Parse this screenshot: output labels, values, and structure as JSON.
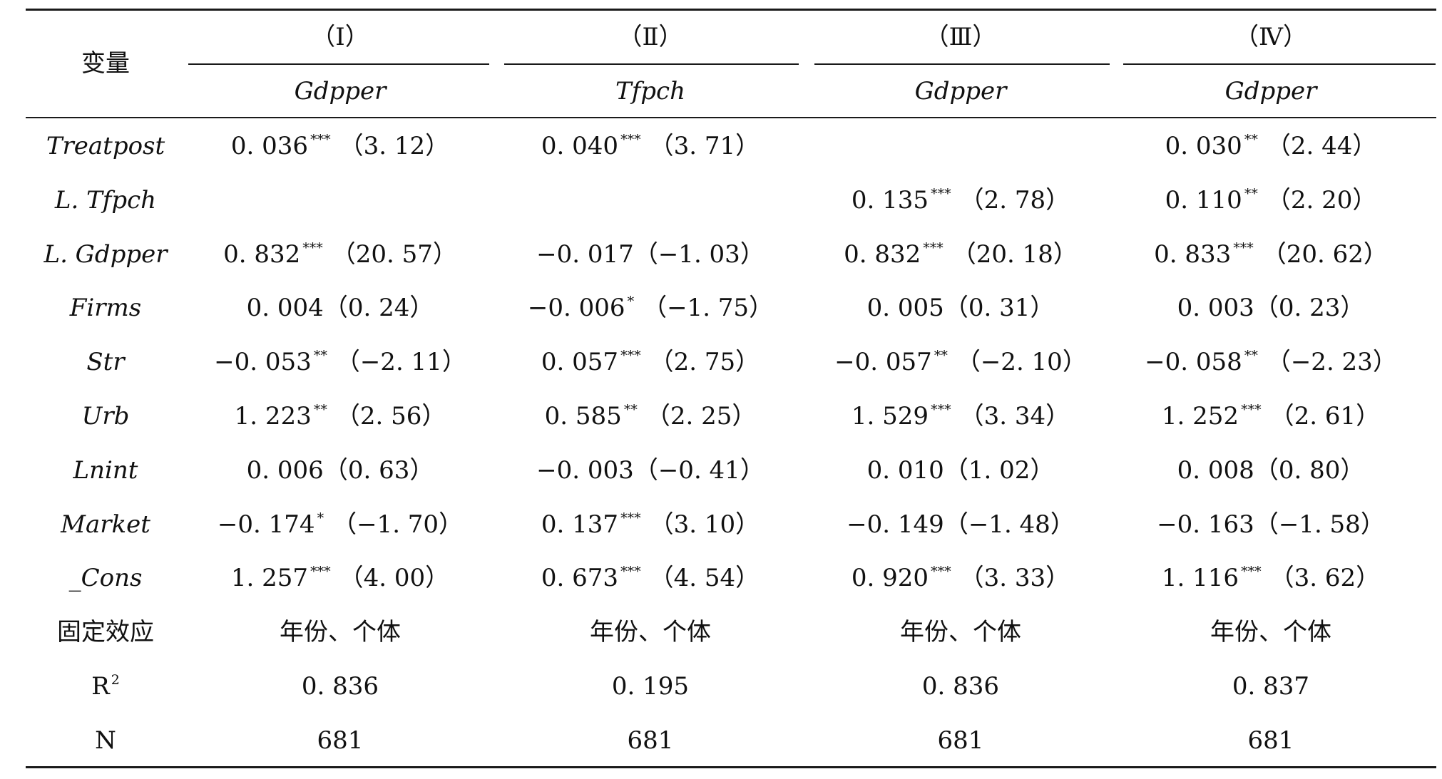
{
  "table": {
    "stub_header": "变量",
    "columns": [
      {
        "number": "（Ⅰ）",
        "dep_var": "Gdpper"
      },
      {
        "number": "（Ⅱ）",
        "dep_var": "Tfpch"
      },
      {
        "number": "（Ⅲ）",
        "dep_var": "Gdpper"
      },
      {
        "number": "（Ⅳ）",
        "dep_var": "Gdpper"
      }
    ],
    "rows": [
      {
        "label": "Treatpost",
        "cells": [
          {
            "coef": "0. 036",
            "stars": "***",
            "t": "（3. 12）"
          },
          {
            "coef": "0. 040",
            "stars": "***",
            "t": "（3. 71）"
          },
          {
            "coef": "",
            "stars": "",
            "t": ""
          },
          {
            "coef": "0. 030",
            "stars": "**",
            "t": "（2. 44）"
          }
        ]
      },
      {
        "label": "L. Tfpch",
        "cells": [
          {
            "coef": "",
            "stars": "",
            "t": ""
          },
          {
            "coef": "",
            "stars": "",
            "t": ""
          },
          {
            "coef": "0. 135",
            "stars": "***",
            "t": "（2. 78）"
          },
          {
            "coef": "0. 110",
            "stars": "**",
            "t": "（2. 20）"
          }
        ]
      },
      {
        "label": "L. Gdpper",
        "cells": [
          {
            "coef": "0. 832",
            "stars": "***",
            "t": "（20. 57）"
          },
          {
            "coef": "−0. 017",
            "stars": "",
            "t": "（−1. 03）"
          },
          {
            "coef": "0. 832",
            "stars": "***",
            "t": "（20. 18）"
          },
          {
            "coef": "0. 833",
            "stars": "***",
            "t": "（20. 62）"
          }
        ]
      },
      {
        "label": "Firms",
        "cells": [
          {
            "coef": "0. 004",
            "stars": "",
            "t": "（0. 24）"
          },
          {
            "coef": "−0. 006",
            "stars": "*",
            "t": "（−1. 75）"
          },
          {
            "coef": "0. 005",
            "stars": "",
            "t": "（0. 31）"
          },
          {
            "coef": "0. 003",
            "stars": "",
            "t": "（0. 23）"
          }
        ]
      },
      {
        "label": "Str",
        "cells": [
          {
            "coef": "−0. 053",
            "stars": "**",
            "t": "（−2. 11）"
          },
          {
            "coef": "0. 057",
            "stars": "***",
            "t": "（2. 75）"
          },
          {
            "coef": "−0. 057",
            "stars": "**",
            "t": "（−2. 10）"
          },
          {
            "coef": "−0. 058",
            "stars": "**",
            "t": "（−2. 23）"
          }
        ]
      },
      {
        "label": "Urb",
        "cells": [
          {
            "coef": "1. 223",
            "stars": "**",
            "t": "（2. 56）"
          },
          {
            "coef": "0. 585",
            "stars": "**",
            "t": "（2. 25）"
          },
          {
            "coef": "1. 529",
            "stars": "***",
            "t": "（3. 34）"
          },
          {
            "coef": "1. 252",
            "stars": "***",
            "t": "（2. 61）"
          }
        ]
      },
      {
        "label": "Lnint",
        "cells": [
          {
            "coef": "0. 006",
            "stars": "",
            "t": "（0. 63）"
          },
          {
            "coef": "−0. 003",
            "stars": "",
            "t": "（−0. 41）"
          },
          {
            "coef": "0. 010",
            "stars": "",
            "t": "（1. 02）"
          },
          {
            "coef": "0. 008",
            "stars": "",
            "t": "（0. 80）"
          }
        ]
      },
      {
        "label": "Market",
        "cells": [
          {
            "coef": "−0. 174",
            "stars": "*",
            "t": "（−1. 70）"
          },
          {
            "coef": "0. 137",
            "stars": "***",
            "t": "（3. 10）"
          },
          {
            "coef": "−0. 149",
            "stars": "",
            "t": "（−1. 48）"
          },
          {
            "coef": "−0. 163",
            "stars": "",
            "t": "（−1. 58）"
          }
        ]
      },
      {
        "label": "_Cons",
        "cells": [
          {
            "coef": "1. 257",
            "stars": "***",
            "t": "（4. 00）"
          },
          {
            "coef": "0. 673",
            "stars": "***",
            "t": "（4. 54）"
          },
          {
            "coef": "0. 920",
            "stars": "***",
            "t": "（3. 33）"
          },
          {
            "coef": "1. 116",
            "stars": "***",
            "t": "（3. 62）"
          }
        ]
      }
    ],
    "fixed_effects": {
      "label": "固定效应",
      "values": [
        "年份、个体",
        "年份、个体",
        "年份、个体",
        "年份、个体"
      ]
    },
    "r2": {
      "label": "R",
      "sup": "2",
      "values": [
        "0. 836",
        "0. 195",
        "0. 836",
        "0. 837"
      ]
    },
    "n": {
      "label": "N",
      "values": [
        "681",
        "681",
        "681",
        "681"
      ]
    }
  }
}
